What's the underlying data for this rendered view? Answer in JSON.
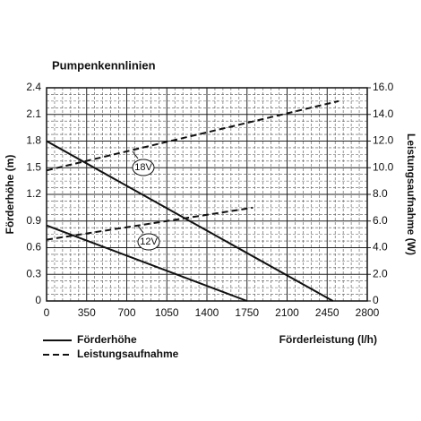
{
  "chart_data": {
    "type": "line",
    "title": "Pumpenkennlinien",
    "x_label": "Förderleistung (l/h)",
    "y_label": "Förderhöhe (m)",
    "y2_label": "Leistungsaufnahme (W)",
    "xlim": [
      0,
      2800
    ],
    "xticks": [
      0,
      350,
      700,
      1050,
      1400,
      1750,
      2100,
      2450,
      2800
    ],
    "ylim": [
      0,
      2.4
    ],
    "yticks": [
      0,
      0.3,
      0.6,
      0.9,
      1.2,
      1.5,
      1.8,
      2.1,
      2.4
    ],
    "y2lim": [
      0,
      16
    ],
    "y2ticks": [
      0,
      {
        "value": 2,
        "label": "2.0"
      },
      {
        "value": 4,
        "label": "4.0"
      },
      {
        "value": 6,
        "label": "6.0"
      },
      {
        "value": 8,
        "label": "8.0"
      },
      {
        "value": 10,
        "label": "10.0"
      },
      {
        "value": 12,
        "label": "12.0"
      },
      {
        "value": 14,
        "label": "14.0"
      },
      {
        "value": 16,
        "label": "16.0"
      }
    ],
    "grid": true,
    "color": "#111111",
    "legend": [
      {
        "name": "Förderhöhe",
        "dash": false
      },
      {
        "name": "Leistungsaufnahme",
        "dash": true
      }
    ],
    "annotations": [
      "18V",
      "12V"
    ],
    "series": [
      {
        "x": [
          0,
          2500
        ],
        "values": [
          1.8,
          0
        ],
        "dash": false
      },
      {
        "x": [
          0,
          1750
        ],
        "values": [
          0.85,
          0
        ],
        "dash": false
      },
      {
        "x": [
          0,
          2550
        ],
        "values": [
          9.8,
          15.0
        ],
        "dash": true,
        "axis": "y2"
      },
      {
        "x": [
          0,
          1800
        ],
        "values": [
          4.6,
          7.0
        ],
        "dash": true,
        "axis": "y2"
      }
    ]
  }
}
